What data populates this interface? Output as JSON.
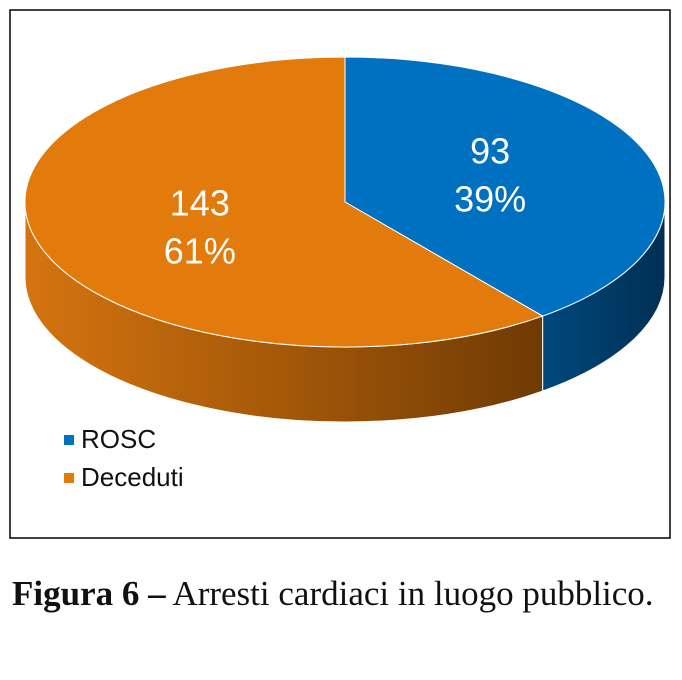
{
  "chart_data": {
    "type": "pie3d",
    "categories": [
      "ROSC",
      "Deceduti"
    ],
    "values": [
      93,
      143
    ],
    "percent_labels": [
      "39%",
      "61%"
    ],
    "colors": [
      "#0070c0",
      "#e37b0c"
    ],
    "side_colors": [
      "#003c6a",
      "#8a4a06"
    ],
    "legend": "bottom-left"
  },
  "caption": {
    "label": "Figura 6 –",
    "text": "Arresti cardiaci in luogo pubblico."
  }
}
